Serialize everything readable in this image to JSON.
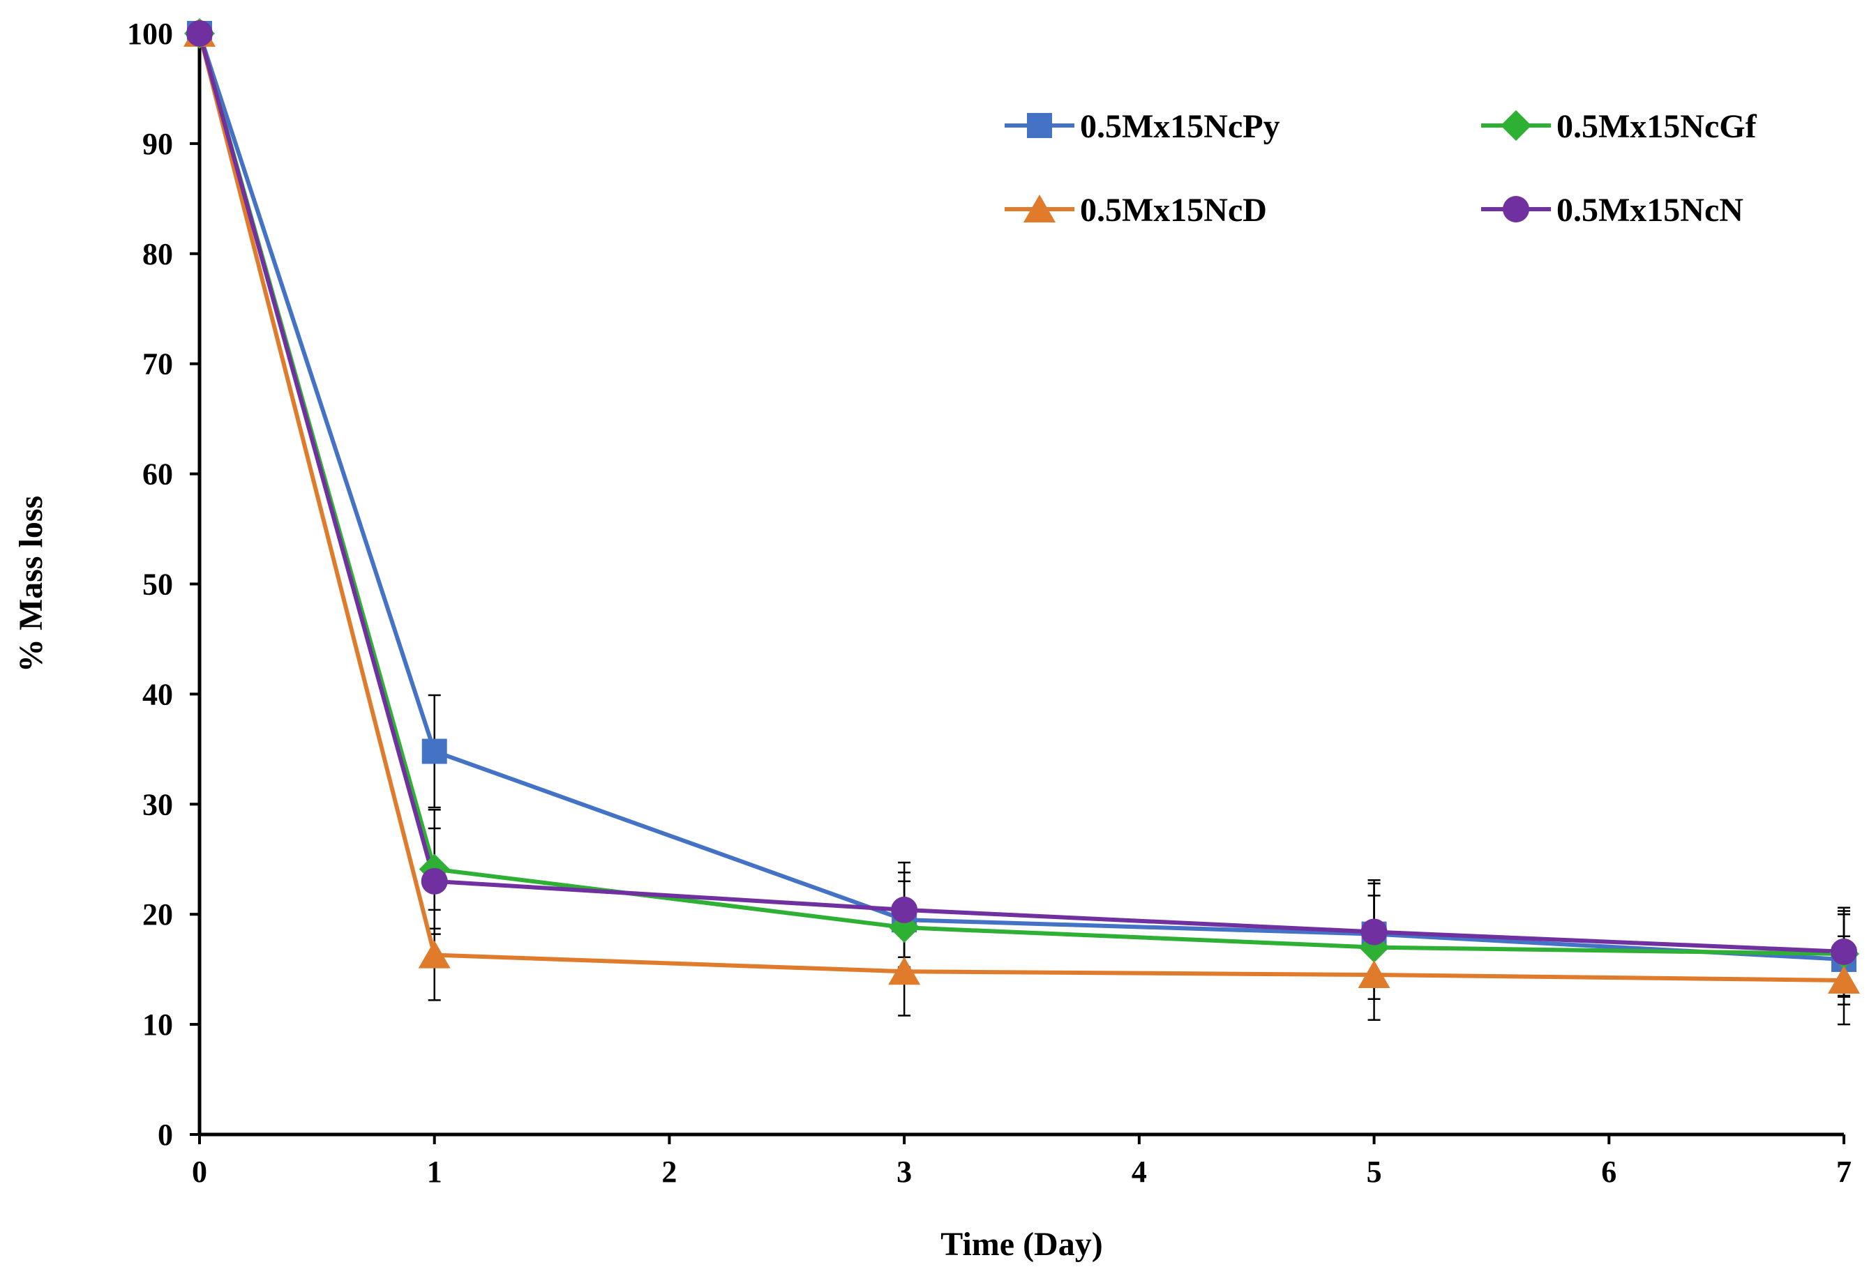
{
  "chart_data": {
    "type": "line",
    "title": "",
    "xlabel": "Time (Day)",
    "ylabel": "% Mass loss",
    "xlim": [
      0,
      7
    ],
    "ylim": [
      0,
      100
    ],
    "x_ticks": [
      0,
      1,
      2,
      3,
      4,
      5,
      6,
      7
    ],
    "y_ticks": [
      0,
      10,
      20,
      30,
      40,
      50,
      60,
      70,
      80,
      90,
      100
    ],
    "grid": false,
    "legend_position": "top-right",
    "x": [
      0,
      1,
      3,
      5,
      7
    ],
    "series": [
      {
        "name": "0.5Mx15NcPy",
        "marker": "square",
        "color": "#4472C4",
        "values": [
          100,
          34.8,
          19.5,
          18.2,
          15.9
        ],
        "errors": [
          0,
          5.1,
          4.3,
          4.6,
          4.1
        ]
      },
      {
        "name": "0.5Mx15NcGf",
        "marker": "diamond",
        "color": "#2DB034",
        "values": [
          100,
          24.1,
          18.8,
          17.0,
          16.4
        ],
        "errors": [
          0,
          5.4,
          4.2,
          4.7,
          3.9
        ]
      },
      {
        "name": "0.5Mx15NcD",
        "marker": "triangle",
        "color": "#E07B2C",
        "values": [
          100,
          16.3,
          14.8,
          14.5,
          14.0
        ],
        "errors": [
          0,
          4.1,
          4.0,
          4.1,
          4.0
        ]
      },
      {
        "name": "0.5Mx15NcN",
        "marker": "circle",
        "color": "#7030A0",
        "values": [
          100,
          23.0,
          20.4,
          18.4,
          16.6
        ],
        "errors": [
          0,
          4.8,
          4.3,
          4.7,
          4.0
        ]
      }
    ]
  }
}
